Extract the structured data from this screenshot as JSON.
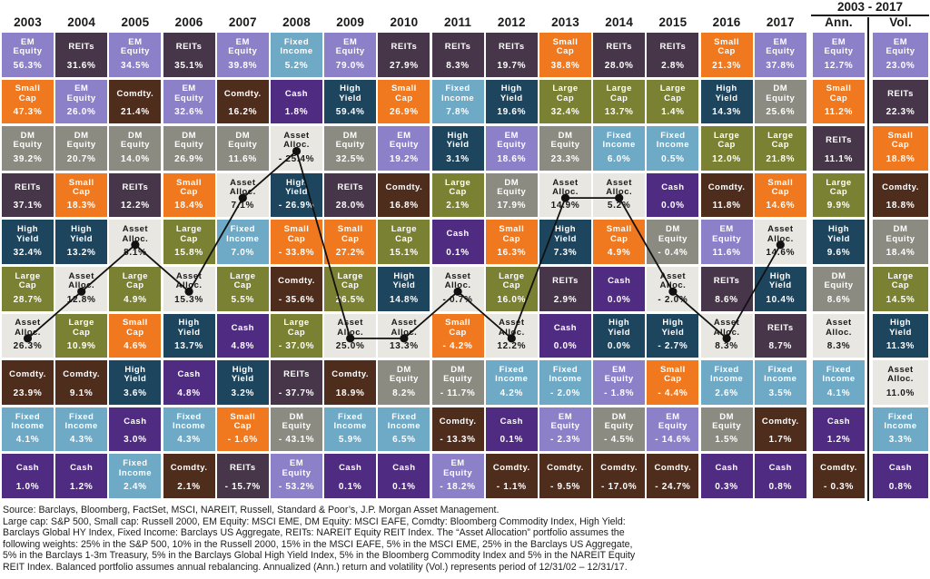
{
  "header": {
    "period_label": "2003 - 2017",
    "ann_label": "Ann.",
    "vol_label": "Vol."
  },
  "colors": {
    "EM Equity": {
      "bg": "#8C81C8",
      "text": "#FFFFFF"
    },
    "Small Cap": {
      "bg": "#F0781E",
      "text": "#FFFFFF"
    },
    "DM Equity": {
      "bg": "#8B8B82",
      "text": "#FFFFFF"
    },
    "REITs": {
      "bg": "#473649",
      "text": "#FFFFFF"
    },
    "High Yield": {
      "bg": "#1D455E",
      "text": "#FFFFFF"
    },
    "Large Cap": {
      "bg": "#7A8133",
      "text": "#FFFFFF"
    },
    "Asset Alloc.": {
      "bg": "#E8E7E2",
      "text": "#1A1A1A"
    },
    "Comdty.": {
      "bg": "#4F2D1D",
      "text": "#FFFFFF"
    },
    "Fixed Income": {
      "bg": "#6EA9C6",
      "text": "#FFFFFF"
    },
    "Cash": {
      "bg": "#4F2B82",
      "text": "#FFFFFF"
    },
    "trace_line": "#111111",
    "header_rule": "#1a1a1a"
  },
  "chart_data": {
    "type": "table",
    "subtype": "asset-class-returns-quilt",
    "title": "Asset class returns ranked by year, 2003 - 2017",
    "traced_asset": "Asset Alloc.",
    "legend_position": "none",
    "grid": "off",
    "columns": [
      {
        "label": "2003",
        "cells": [
          [
            "EM Equity",
            "56.3%"
          ],
          [
            "Small Cap",
            "47.3%"
          ],
          [
            "DM Equity",
            "39.2%"
          ],
          [
            "REITs",
            "37.1%"
          ],
          [
            "High Yield",
            "32.4%"
          ],
          [
            "Large Cap",
            "28.7%"
          ],
          [
            "Asset Alloc.",
            "26.3%"
          ],
          [
            "Comdty.",
            "23.9%"
          ],
          [
            "Fixed Income",
            "4.1%"
          ],
          [
            "Cash",
            "1.0%"
          ]
        ]
      },
      {
        "label": "2004",
        "cells": [
          [
            "REITs",
            "31.6%"
          ],
          [
            "EM Equity",
            "26.0%"
          ],
          [
            "DM Equity",
            "20.7%"
          ],
          [
            "Small Cap",
            "18.3%"
          ],
          [
            "High Yield",
            "13.2%"
          ],
          [
            "Asset Alloc.",
            "12.8%"
          ],
          [
            "Large Cap",
            "10.9%"
          ],
          [
            "Comdty.",
            "9.1%"
          ],
          [
            "Fixed Income",
            "4.3%"
          ],
          [
            "Cash",
            "1.2%"
          ]
        ]
      },
      {
        "label": "2005",
        "cells": [
          [
            "EM Equity",
            "34.5%"
          ],
          [
            "Comdty.",
            "21.4%"
          ],
          [
            "DM Equity",
            "14.0%"
          ],
          [
            "REITs",
            "12.2%"
          ],
          [
            "Asset Alloc.",
            "8.1%"
          ],
          [
            "Large Cap",
            "4.9%"
          ],
          [
            "Small Cap",
            "4.6%"
          ],
          [
            "High Yield",
            "3.6%"
          ],
          [
            "Cash",
            "3.0%"
          ],
          [
            "Fixed Income",
            "2.4%"
          ]
        ]
      },
      {
        "label": "2006",
        "cells": [
          [
            "REITs",
            "35.1%"
          ],
          [
            "EM Equity",
            "32.6%"
          ],
          [
            "DM Equity",
            "26.9%"
          ],
          [
            "Small Cap",
            "18.4%"
          ],
          [
            "Large Cap",
            "15.8%"
          ],
          [
            "Asset Alloc.",
            "15.3%"
          ],
          [
            "High Yield",
            "13.7%"
          ],
          [
            "Cash",
            "4.8%"
          ],
          [
            "Fixed Income",
            "4.3%"
          ],
          [
            "Comdty.",
            "2.1%"
          ]
        ]
      },
      {
        "label": "2007",
        "cells": [
          [
            "EM Equity",
            "39.8%"
          ],
          [
            "Comdty.",
            "16.2%"
          ],
          [
            "DM Equity",
            "11.6%"
          ],
          [
            "Asset Alloc.",
            "7.1%"
          ],
          [
            "Fixed Income",
            "7.0%"
          ],
          [
            "Large Cap",
            "5.5%"
          ],
          [
            "Cash",
            "4.8%"
          ],
          [
            "High Yield",
            "3.2%"
          ],
          [
            "Small Cap",
            "- 1.6%"
          ],
          [
            "REITs",
            "- 15.7%"
          ]
        ]
      },
      {
        "label": "2008",
        "cells": [
          [
            "Fixed Income",
            "5.2%"
          ],
          [
            "Cash",
            "1.8%"
          ],
          [
            "Asset Alloc.",
            "- 25.4%"
          ],
          [
            "High Yield",
            "- 26.9%"
          ],
          [
            "Small Cap",
            "- 33.8%"
          ],
          [
            "Comdty.",
            "- 35.6%"
          ],
          [
            "Large Cap",
            "- 37.0%"
          ],
          [
            "REITs",
            "- 37.7%"
          ],
          [
            "DM Equity",
            "- 43.1%"
          ],
          [
            "EM Equity",
            "- 53.2%"
          ]
        ]
      },
      {
        "label": "2009",
        "cells": [
          [
            "EM Equity",
            "79.0%"
          ],
          [
            "High Yield",
            "59.4%"
          ],
          [
            "DM Equity",
            "32.5%"
          ],
          [
            "REITs",
            "28.0%"
          ],
          [
            "Small Cap",
            "27.2%"
          ],
          [
            "Large Cap",
            "26.5%"
          ],
          [
            "Asset Alloc.",
            "25.0%"
          ],
          [
            "Comdty.",
            "18.9%"
          ],
          [
            "Fixed Income",
            "5.9%"
          ],
          [
            "Cash",
            "0.1%"
          ]
        ]
      },
      {
        "label": "2010",
        "cells": [
          [
            "REITs",
            "27.9%"
          ],
          [
            "Small Cap",
            "26.9%"
          ],
          [
            "EM Equity",
            "19.2%"
          ],
          [
            "Comdty.",
            "16.8%"
          ],
          [
            "Large Cap",
            "15.1%"
          ],
          [
            "High Yield",
            "14.8%"
          ],
          [
            "Asset Alloc.",
            "13.3%"
          ],
          [
            "DM Equity",
            "8.2%"
          ],
          [
            "Fixed Income",
            "6.5%"
          ],
          [
            "Cash",
            "0.1%"
          ]
        ]
      },
      {
        "label": "2011",
        "cells": [
          [
            "REITs",
            "8.3%"
          ],
          [
            "Fixed Income",
            "7.8%"
          ],
          [
            "High Yield",
            "3.1%"
          ],
          [
            "Large Cap",
            "2.1%"
          ],
          [
            "Cash",
            "0.1%"
          ],
          [
            "Asset Alloc.",
            "- 0.7%"
          ],
          [
            "Small Cap",
            "- 4.2%"
          ],
          [
            "DM Equity",
            "- 11.7%"
          ],
          [
            "Comdty.",
            "- 13.3%"
          ],
          [
            "EM Equity",
            "- 18.2%"
          ]
        ]
      },
      {
        "label": "2012",
        "cells": [
          [
            "REITs",
            "19.7%"
          ],
          [
            "High Yield",
            "19.6%"
          ],
          [
            "EM Equity",
            "18.6%"
          ],
          [
            "DM Equity",
            "17.9%"
          ],
          [
            "Small Cap",
            "16.3%"
          ],
          [
            "Large Cap",
            "16.0%"
          ],
          [
            "Asset Alloc.",
            "12.2%"
          ],
          [
            "Fixed Income",
            "4.2%"
          ],
          [
            "Cash",
            "0.1%"
          ],
          [
            "Comdty.",
            "- 1.1%"
          ]
        ]
      },
      {
        "label": "2013",
        "cells": [
          [
            "Small Cap",
            "38.8%"
          ],
          [
            "Large Cap",
            "32.4%"
          ],
          [
            "DM Equity",
            "23.3%"
          ],
          [
            "Asset Alloc.",
            "14.9%"
          ],
          [
            "High Yield",
            "7.3%"
          ],
          [
            "REITs",
            "2.9%"
          ],
          [
            "Cash",
            "0.0%"
          ],
          [
            "Fixed Income",
            "- 2.0%"
          ],
          [
            "EM Equity",
            "- 2.3%"
          ],
          [
            "Comdty.",
            "- 9.5%"
          ]
        ]
      },
      {
        "label": "2014",
        "cells": [
          [
            "REITs",
            "28.0%"
          ],
          [
            "Large Cap",
            "13.7%"
          ],
          [
            "Fixed Income",
            "6.0%"
          ],
          [
            "Asset Alloc.",
            "5.2%"
          ],
          [
            "Small Cap",
            "4.9%"
          ],
          [
            "Cash",
            "0.0%"
          ],
          [
            "High Yield",
            "0.0%"
          ],
          [
            "EM Equity",
            "- 1.8%"
          ],
          [
            "DM Equity",
            "- 4.5%"
          ],
          [
            "Comdty.",
            "- 17.0%"
          ]
        ]
      },
      {
        "label": "2015",
        "cells": [
          [
            "REITs",
            "2.8%"
          ],
          [
            "Large Cap",
            "1.4%"
          ],
          [
            "Fixed Income",
            "0.5%"
          ],
          [
            "Cash",
            "0.0%"
          ],
          [
            "DM Equity",
            "- 0.4%"
          ],
          [
            "Asset Alloc.",
            "- 2.0%"
          ],
          [
            "High Yield",
            "- 2.7%"
          ],
          [
            "Small Cap",
            "- 4.4%"
          ],
          [
            "EM Equity",
            "- 14.6%"
          ],
          [
            "Comdty.",
            "- 24.7%"
          ]
        ]
      },
      {
        "label": "2016",
        "cells": [
          [
            "Small Cap",
            "21.3%"
          ],
          [
            "High Yield",
            "14.3%"
          ],
          [
            "Large Cap",
            "12.0%"
          ],
          [
            "Comdty.",
            "11.8%"
          ],
          [
            "EM Equity",
            "11.6%"
          ],
          [
            "REITs",
            "8.6%"
          ],
          [
            "Asset Alloc.",
            "8.3%"
          ],
          [
            "Fixed Income",
            "2.6%"
          ],
          [
            "DM Equity",
            "1.5%"
          ],
          [
            "Cash",
            "0.3%"
          ]
        ]
      },
      {
        "label": "2017",
        "cells": [
          [
            "EM Equity",
            "37.8%"
          ],
          [
            "DM Equity",
            "25.6%"
          ],
          [
            "Large Cap",
            "21.8%"
          ],
          [
            "Small Cap",
            "14.6%"
          ],
          [
            "Asset Alloc.",
            "14.6%"
          ],
          [
            "High Yield",
            "10.4%"
          ],
          [
            "REITs",
            "8.7%"
          ],
          [
            "Fixed Income",
            "3.5%"
          ],
          [
            "Comdty.",
            "1.7%"
          ],
          [
            "Cash",
            "0.8%"
          ]
        ]
      },
      {
        "label": "Ann.",
        "cells": [
          [
            "EM Equity",
            "12.7%"
          ],
          [
            "Small Cap",
            "11.2%"
          ],
          [
            "REITs",
            "11.1%"
          ],
          [
            "Large Cap",
            "9.9%"
          ],
          [
            "High Yield",
            "9.6%"
          ],
          [
            "DM Equity",
            "8.6%"
          ],
          [
            "Asset Alloc.",
            "8.3%"
          ],
          [
            "Fixed Income",
            "4.1%"
          ],
          [
            "Cash",
            "1.2%"
          ],
          [
            "Comdty.",
            "- 0.3%"
          ]
        ]
      },
      {
        "label": "Vol.",
        "cells": [
          [
            "EM Equity",
            "23.0%"
          ],
          [
            "REITs",
            "22.3%"
          ],
          [
            "Small Cap",
            "18.8%"
          ],
          [
            "Comdty.",
            "18.8%"
          ],
          [
            "DM Equity",
            "18.4%"
          ],
          [
            "Large Cap",
            "14.5%"
          ],
          [
            "High Yield",
            "11.3%"
          ],
          [
            "Asset Alloc.",
            "11.0%"
          ],
          [
            "Fixed Income",
            "3.3%"
          ],
          [
            "Cash",
            "0.8%"
          ]
        ]
      }
    ]
  },
  "footer": {
    "lines": [
      "Source: Barclays, Bloomberg, FactSet, MSCI, NAREIT, Russell, Standard & Poor’s, J.P. Morgan Asset Management.",
      "Large cap: S&P 500, Small cap: Russell 2000, EM Equity: MSCI EME, DM Equity: MSCI EAFE, Comdty: Bloomberg Commodity Index, High Yield:",
      "Barclays Global HY Index, Fixed Income: Barclays US Aggregate, REITs: NAREIT Equity REIT Index. The “Asset Allocation” portfolio assumes the",
      "following weights: 25% in the S&P 500, 10% in the Russell 2000, 15% in the MSCI EAFE, 5% in the MSCI EME, 25% in the Barclays US Aggregate,",
      "5% in the Barclays 1-3m Treasury, 5% in the Barclays Global High Yield Index, 5% in the Bloomberg Commodity Index and 5% in the NAREIT Equity",
      "REIT Index. Balanced portfolio assumes annual rebalancing. Annualized (Ann.) return and volatility (Vol.) represents period of 12/31/02 – 12/31/17."
    ]
  }
}
